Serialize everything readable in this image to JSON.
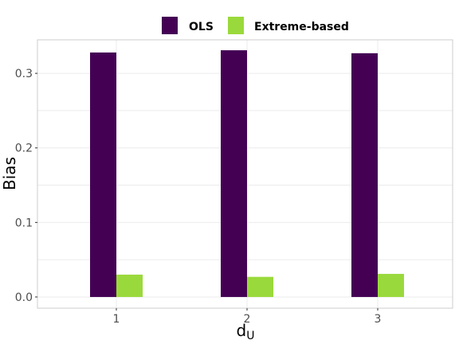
{
  "chart_data": {
    "type": "bar",
    "title": "",
    "xlabel": "d",
    "xlabel_subscript": "U",
    "ylabel": "Bias",
    "categories": [
      "1",
      "2",
      "3"
    ],
    "series": [
      {
        "name": "OLS",
        "color": "#440154",
        "values": [
          0.328,
          0.331,
          0.327
        ]
      },
      {
        "name": "Extreme-based",
        "color": "#9ad93b",
        "values": [
          0.03,
          0.027,
          0.031
        ]
      }
    ],
    "ylim": [
      -0.015,
      0.345
    ],
    "yticks": [
      0.0,
      0.1,
      0.2,
      0.3
    ],
    "ytick_labels": [
      "0.0",
      "0.1",
      "0.2",
      "0.3"
    ],
    "legend_position": "top",
    "grid": true
  }
}
